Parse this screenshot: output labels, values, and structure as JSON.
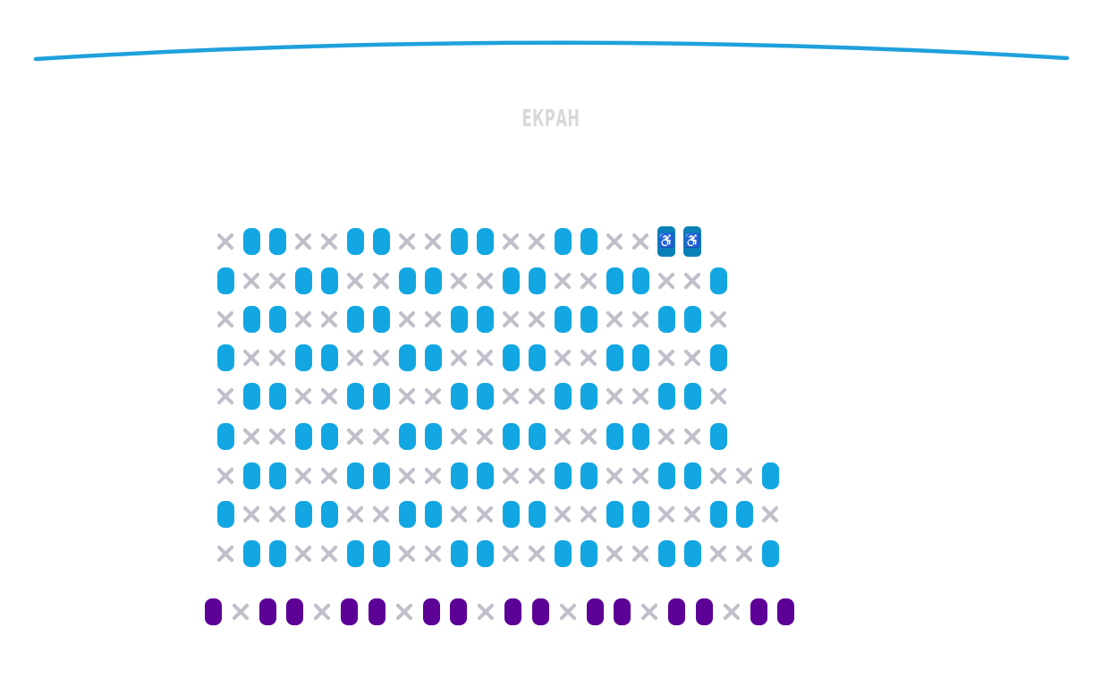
{
  "screen": {
    "label": "ЕКРАН"
  },
  "colors": {
    "screen_arc": "#1ea1dc",
    "available": "#12a7e2",
    "wheelchair": "#0a80b8",
    "vip": "#5c0096",
    "taken": "#c0bfca"
  },
  "icons": {
    "taken": "x-icon",
    "wheelchair": "wheelchair-icon"
  },
  "hall": {
    "rows": [
      [
        "x",
        "a",
        "a",
        "x",
        "x",
        "a",
        "a",
        "x",
        "x",
        "a",
        "a",
        "x",
        "x",
        "a",
        "a",
        "x",
        "x",
        "w",
        "w"
      ],
      [
        "a",
        "x",
        "x",
        "a",
        "a",
        "x",
        "x",
        "a",
        "a",
        "x",
        "x",
        "a",
        "a",
        "x",
        "x",
        "a",
        "a",
        "x",
        "x",
        "a"
      ],
      [
        "x",
        "a",
        "a",
        "x",
        "x",
        "a",
        "a",
        "x",
        "x",
        "a",
        "a",
        "x",
        "x",
        "a",
        "a",
        "x",
        "x",
        "a",
        "a",
        "x"
      ],
      [
        "a",
        "x",
        "x",
        "a",
        "a",
        "x",
        "x",
        "a",
        "a",
        "x",
        "x",
        "a",
        "a",
        "x",
        "x",
        "a",
        "a",
        "x",
        "x",
        "a"
      ],
      [
        "x",
        "a",
        "a",
        "x",
        "x",
        "a",
        "a",
        "x",
        "x",
        "a",
        "a",
        "x",
        "x",
        "a",
        "a",
        "x",
        "x",
        "a",
        "a",
        "x"
      ],
      [
        "a",
        "x",
        "x",
        "a",
        "a",
        "x",
        "x",
        "a",
        "a",
        "x",
        "x",
        "a",
        "a",
        "x",
        "x",
        "a",
        "a",
        "x",
        "x",
        "a"
      ],
      [
        "x",
        "a",
        "a",
        "x",
        "x",
        "a",
        "a",
        "x",
        "x",
        "a",
        "a",
        "x",
        "x",
        "a",
        "a",
        "x",
        "x",
        "a",
        "a",
        "x",
        "x",
        "a"
      ],
      [
        "a",
        "x",
        "x",
        "a",
        "a",
        "x",
        "x",
        "a",
        "a",
        "x",
        "x",
        "a",
        "a",
        "x",
        "x",
        "a",
        "a",
        "x",
        "x",
        "a",
        "a",
        "x"
      ],
      [
        "x",
        "a",
        "a",
        "x",
        "x",
        "a",
        "a",
        "x",
        "x",
        "a",
        "a",
        "x",
        "x",
        "a",
        "a",
        "x",
        "x",
        "a",
        "a",
        "x",
        "x",
        "a"
      ]
    ],
    "vip_row": [
      "p",
      "x",
      "p",
      "p",
      "x",
      "p",
      "p",
      "x",
      "p",
      "p",
      "x",
      "p",
      "p",
      "x",
      "p",
      "p",
      "x",
      "p",
      "p",
      "x",
      "p",
      "p"
    ]
  }
}
